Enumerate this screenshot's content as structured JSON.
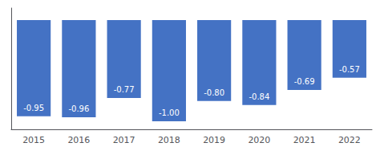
{
  "chart_data": {
    "type": "bar",
    "categories": [
      "2015",
      "2016",
      "2017",
      "2018",
      "2019",
      "2020",
      "2021",
      "2022"
    ],
    "values": [
      -0.95,
      -0.96,
      -0.77,
      -1.0,
      -0.8,
      -0.84,
      -0.69,
      -0.57
    ],
    "value_labels": [
      "-0.95",
      "-0.96",
      "-0.77",
      "-1.00",
      "-0.80",
      "-0.84",
      "-0.69",
      "-0.57"
    ],
    "color": "#4472C4",
    "ylim": [
      -1.08,
      0.12
    ],
    "grid": false,
    "data_labels": true,
    "tick_labels": "x"
  }
}
